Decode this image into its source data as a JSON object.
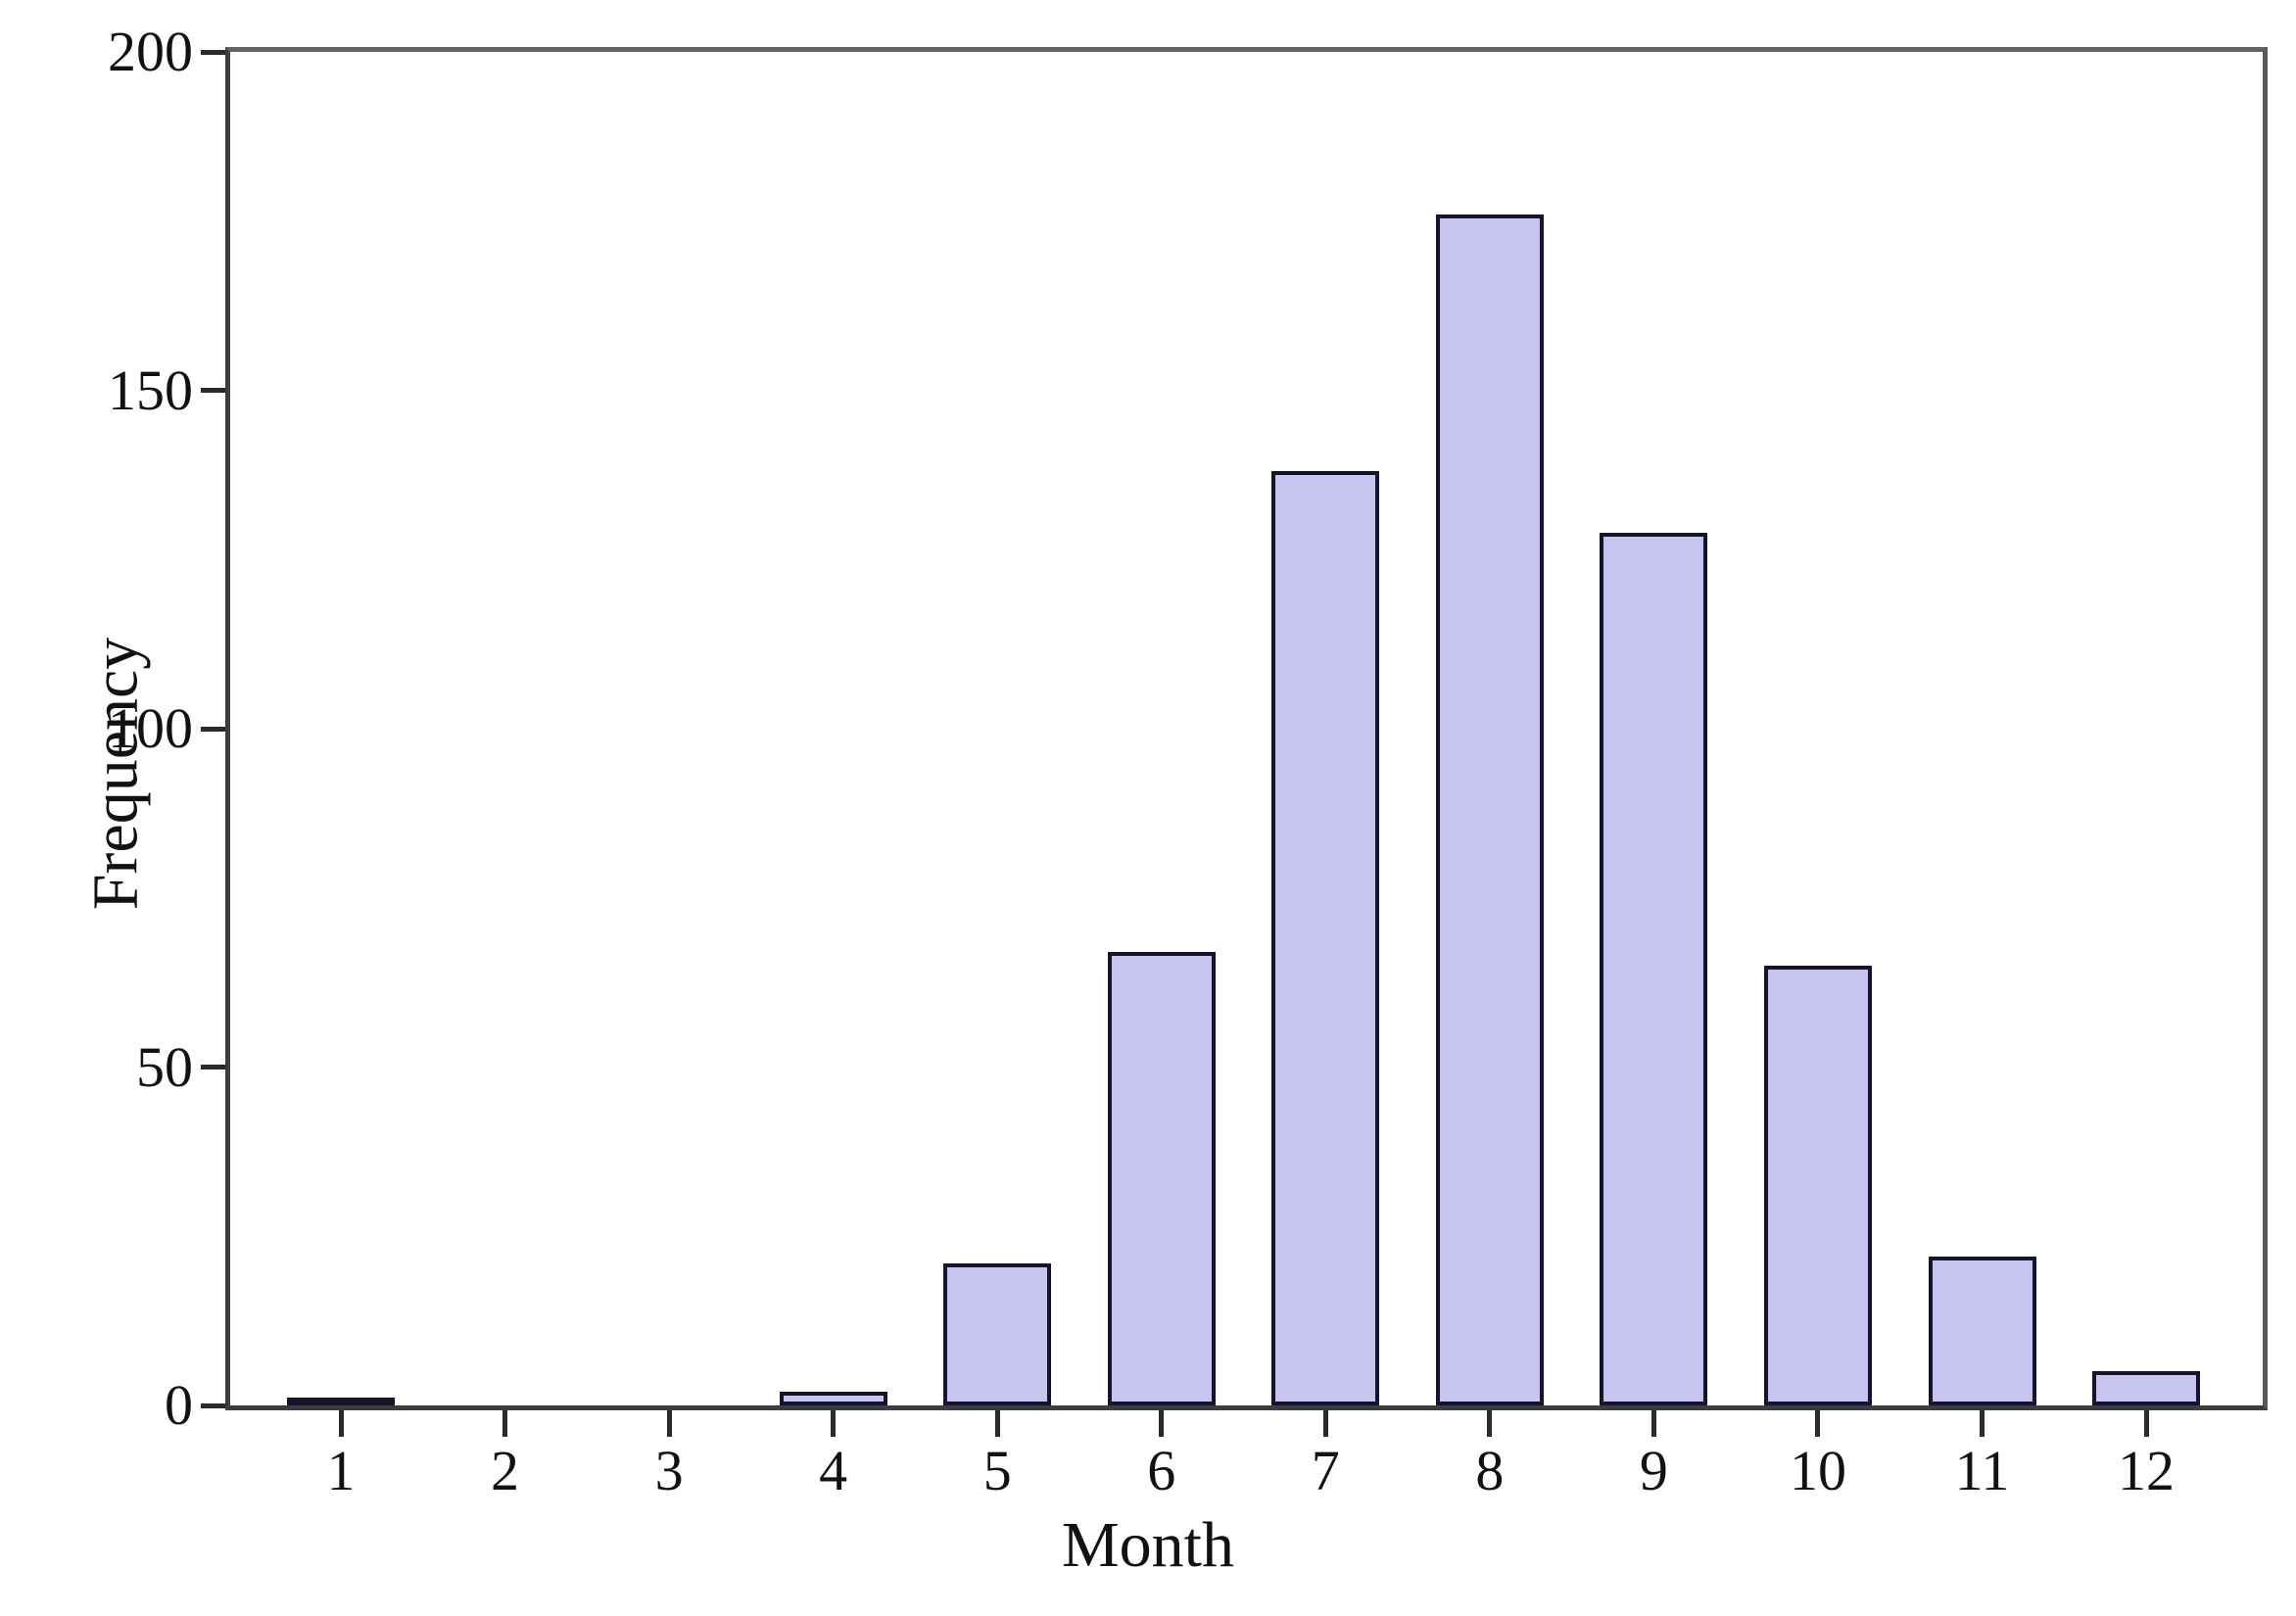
{
  "chart_data": {
    "type": "bar",
    "title": "",
    "xlabel": "Month",
    "ylabel": "Frequency",
    "categories": [
      "1",
      "2",
      "3",
      "4",
      "5",
      "6",
      "7",
      "8",
      "9",
      "10",
      "11",
      "12"
    ],
    "values": [
      1,
      0,
      0,
      2,
      21,
      67,
      138,
      176,
      129,
      65,
      22,
      5
    ],
    "ylim": [
      0,
      200
    ],
    "yticks": [
      0,
      50,
      100,
      150,
      200
    ],
    "grid": false,
    "legend": null,
    "bar_fill_color": "#c7c4ef",
    "bar_border_color": "#14142e",
    "tick_color": "#2a2a2a",
    "text_color": "#111111",
    "background_color": "#ffffff"
  }
}
